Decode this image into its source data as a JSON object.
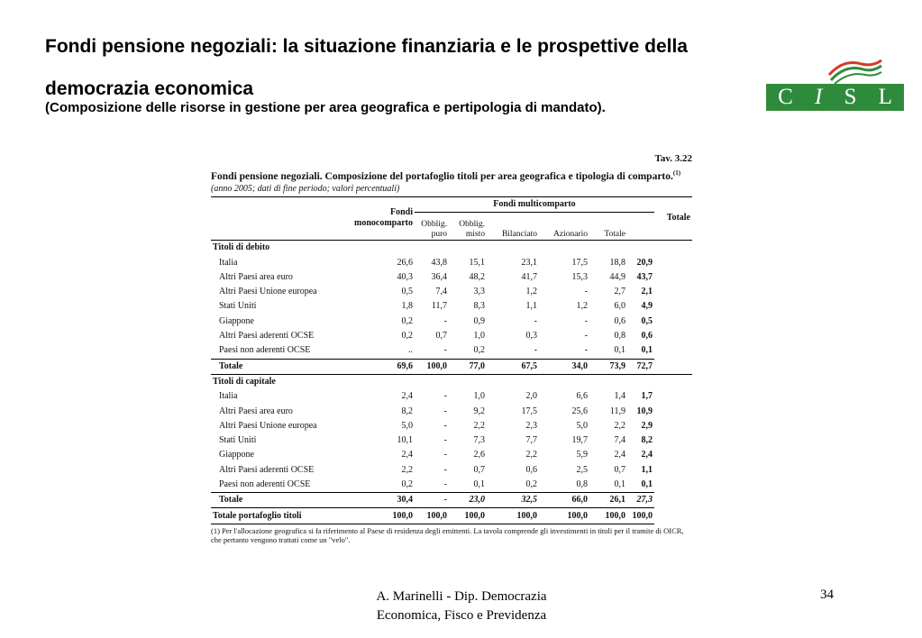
{
  "slide": {
    "title": "Fondi pensione negoziali: la situazione finanziaria e le prospettive della democrazia economica",
    "subtitle": "(Composizione delle risorse in gestione per area geografica e pertipologia di mandato).",
    "logo_letters": [
      "C",
      "I",
      "S",
      "L"
    ],
    "footer_text_line1": "A. Marinelli - Dip. Democrazia",
    "footer_text_line2": "Economica,  Fisco e Previdenza",
    "page_number": "34"
  },
  "table": {
    "tav": "Tav. 3.22",
    "title": "Fondi pensione negoziali. Composizione del portafoglio titoli per area geografica e tipologia di comparto.",
    "title_note_mark": "(1)",
    "subnote": "(anno 2005; dati di fine periodo; valori percentuali)",
    "headers": {
      "fondi_mono": "Fondi monocomparto",
      "multi": "Fondi multicomparto",
      "obblig_puro": "Obblig. puro",
      "obblig_misto": "Obblig. misto",
      "bilanciato": "Bilanciato",
      "azionario": "Azionario",
      "totale_multi": "Totale",
      "totale": "Totale"
    },
    "section_debito": "Titoli di debito",
    "debito_rows": [
      {
        "label": "Italia",
        "v": [
          "26,6",
          "43,8",
          "15,1",
          "23,1",
          "17,5",
          "18,8",
          "20,9"
        ]
      },
      {
        "label": "Altri Paesi area euro",
        "v": [
          "40,3",
          "36,4",
          "48,2",
          "41,7",
          "15,3",
          "44,9",
          "43,7"
        ]
      },
      {
        "label": "Altri Paesi Unione europea",
        "v": [
          "0,5",
          "7,4",
          "3,3",
          "1,2",
          "-",
          "2,7",
          "2,1"
        ]
      },
      {
        "label": "Stati Uniti",
        "v": [
          "1,8",
          "11,7",
          "8,3",
          "1,1",
          "1,2",
          "6,0",
          "4,9"
        ]
      },
      {
        "label": "Giappone",
        "v": [
          "0,2",
          "-",
          "0,9",
          "-",
          "-",
          "0,6",
          "0,5"
        ]
      },
      {
        "label": "Altri Paesi aderenti OCSE",
        "v": [
          "0,2",
          "0,7",
          "1,0",
          "0,3",
          "-",
          "0,8",
          "0,6"
        ]
      },
      {
        "label": "Paesi non aderenti OCSE",
        "v": [
          "..",
          "-",
          "0,2",
          "-",
          "-",
          "0,1",
          "0,1"
        ]
      }
    ],
    "debito_total": {
      "label": "Totale",
      "v": [
        "69,6",
        "100,0",
        "77,0",
        "67,5",
        "34,0",
        "73,9",
        "72,7"
      ]
    },
    "section_capitale": "Titoli di capitale",
    "capitale_rows": [
      {
        "label": "Italia",
        "v": [
          "2,4",
          "-",
          "1,0",
          "2,0",
          "6,6",
          "1,4",
          "1,7"
        ]
      },
      {
        "label": "Altri Paesi area euro",
        "v": [
          "8,2",
          "-",
          "9,2",
          "17,5",
          "25,6",
          "11,9",
          "10,9"
        ]
      },
      {
        "label": "Altri Paesi Unione europea",
        "v": [
          "5,0",
          "-",
          "2,2",
          "2,3",
          "5,0",
          "2,2",
          "2,9"
        ]
      },
      {
        "label": "Stati Uniti",
        "v": [
          "10,1",
          "-",
          "7,3",
          "7,7",
          "19,7",
          "7,4",
          "8,2"
        ]
      },
      {
        "label": "Giappone",
        "v": [
          "2,4",
          "-",
          "2,6",
          "2,2",
          "5,9",
          "2,4",
          "2,4"
        ]
      },
      {
        "label": "Altri Paesi aderenti OCSE",
        "v": [
          "2,2",
          "-",
          "0,7",
          "0,6",
          "2,5",
          "0,7",
          "1,1"
        ]
      },
      {
        "label": "Paesi non aderenti OCSE",
        "v": [
          "0,2",
          "-",
          "0,1",
          "0,2",
          "0,8",
          "0,1",
          "0,1"
        ]
      }
    ],
    "capitale_total": {
      "label": "Totale",
      "v": [
        "30,4",
        "-",
        "23,0",
        "32,5",
        "66,0",
        "26,1",
        "27,3"
      ]
    },
    "grand_total": {
      "label": "Totale portafoglio titoli",
      "v": [
        "100,0",
        "100,0",
        "100,0",
        "100,0",
        "100,0",
        "100,0",
        "100,0"
      ]
    },
    "footnote": "(1) Per l'allocazione geografica si fa riferimento al Paese di residenza degli emittenti. La tavola comprende gli investimenti in titoli per il tramite di OICR, che pertanto vengono trattati come un \"velo\"."
  }
}
